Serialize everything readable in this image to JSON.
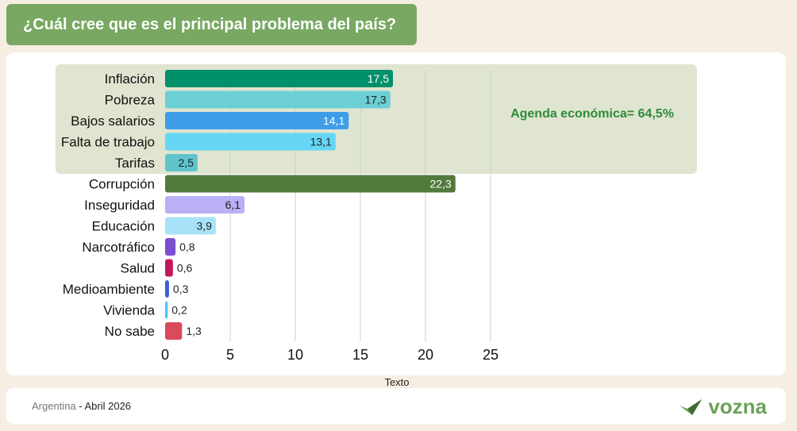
{
  "title": "¿Cuál cree que es el principal problema del país?",
  "footer": {
    "country": "Argentina",
    "separator": " - ",
    "date": "Abril 2026",
    "brand": "vozna"
  },
  "colors": {
    "title_bg": "#78a862",
    "highlight_bg": "#dfe5d0",
    "annotation": "#2e8b3a"
  },
  "chart_data": {
    "type": "bar",
    "orientation": "horizontal",
    "title": "¿Cuál cree que es el principal problema del país?",
    "xlabel": "Texto",
    "ylabel": "",
    "xlim": [
      0,
      25
    ],
    "xticks": [
      0,
      5,
      10,
      15,
      20,
      25
    ],
    "grid": true,
    "categories": [
      "Inflación",
      "Pobreza",
      "Bajos salarios",
      "Falta de trabajo",
      "Tarifas",
      "Corrupción",
      "Inseguridad",
      "Educación",
      "Narcotráfico",
      "Salud",
      "Medioambiente",
      "Vivienda",
      "No sabe"
    ],
    "values": [
      17.5,
      17.3,
      14.1,
      13.1,
      2.5,
      22.3,
      6.1,
      3.9,
      0.8,
      0.6,
      0.3,
      0.2,
      1.3
    ],
    "value_labels": [
      "17,5",
      "17,3",
      "14,1",
      "13,1",
      "2,5",
      "22,3",
      "6,1",
      "3,9",
      "0,8",
      "0,6",
      "0,3",
      "0,2",
      "1,3"
    ],
    "bar_colors": [
      "#00906a",
      "#6dcfd6",
      "#3f9de8",
      "#66d6f5",
      "#5fc4cc",
      "#527a3d",
      "#b9b0f5",
      "#a8e2f8",
      "#7a4fd0",
      "#c2185b",
      "#3e5fcf",
      "#4fc3f7",
      "#d94a5a"
    ],
    "label_colors": [
      "#ffffff",
      "#222222",
      "#ffffff",
      "#222222",
      "#222222",
      "#ffffff",
      "#222222",
      "#222222",
      "#222222",
      "#222222",
      "#222222",
      "#222222",
      "#222222"
    ],
    "annotation": {
      "text": "Agenda económica= 64,5%",
      "group": [
        "Inflación",
        "Pobreza",
        "Bajos salarios",
        "Falta de trabajo",
        "Tarifas"
      ]
    }
  }
}
